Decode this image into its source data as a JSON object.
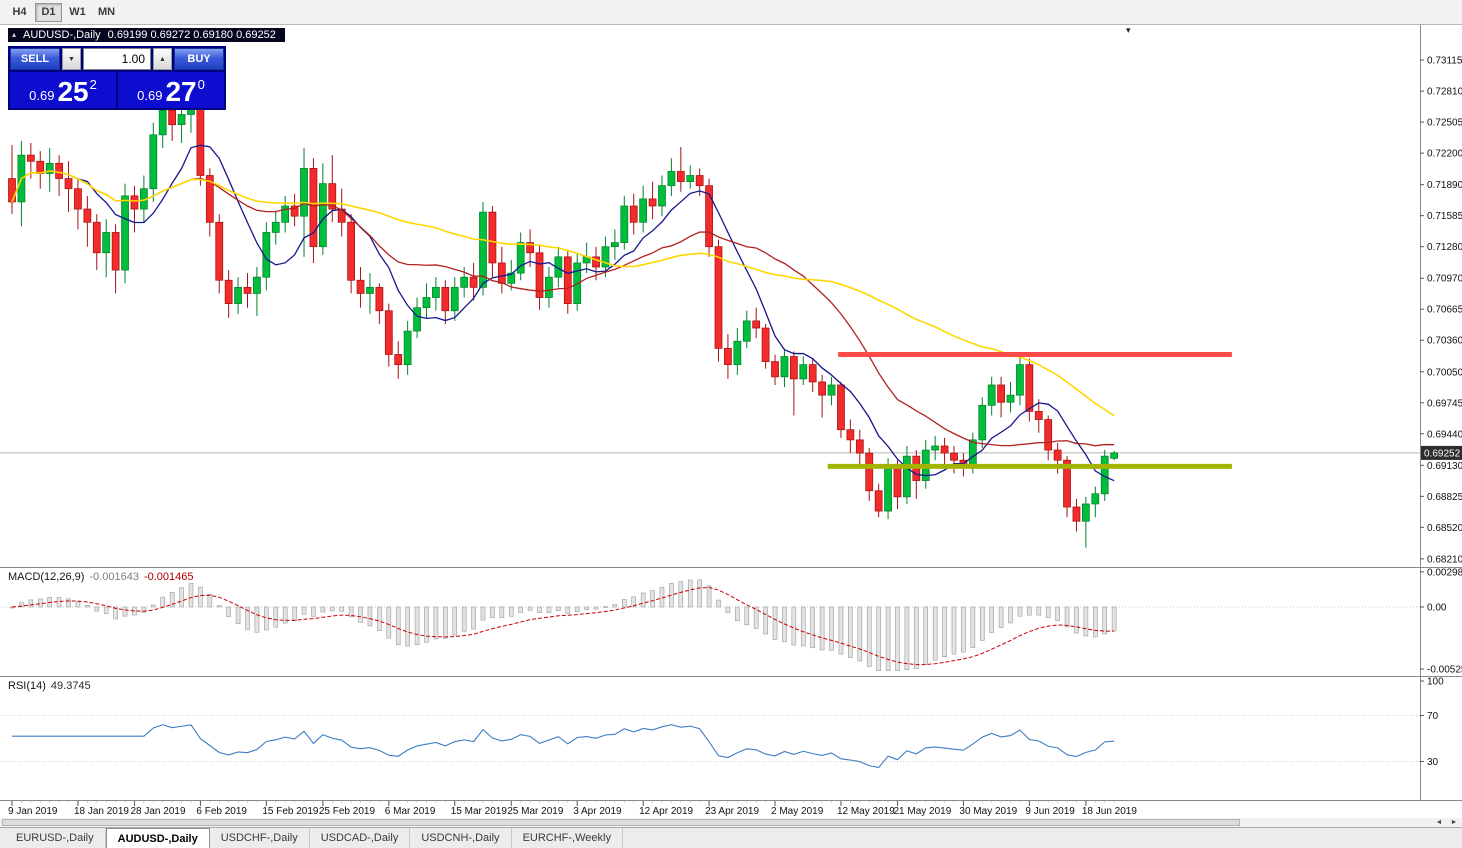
{
  "toolbar": {
    "timeframes": [
      "H4",
      "D1",
      "W1",
      "MN"
    ],
    "active": "D1"
  },
  "chart": {
    "symbol_title": "AUDUSD-,Daily",
    "ohlc_text": "0.69199 0.69272 0.69180 0.69252"
  },
  "trade_panel": {
    "volume": "1.00",
    "sell": {
      "label": "SELL",
      "price_main": "0.69",
      "price_big": "25",
      "price_sup": "2"
    },
    "buy": {
      "label": "BUY",
      "price_main": "0.69",
      "price_big": "27",
      "price_sup": "0"
    }
  },
  "icons": {
    "collapse": "▴",
    "dropdown": "▾",
    "scroll_left": "◄",
    "scroll_right": "►",
    "spin_down": "▼",
    "spin_up": "▲"
  },
  "price_axis": {
    "labels": [
      "0.73115",
      "0.72810",
      "0.72505",
      "0.72200",
      "0.71890",
      "0.71585",
      "0.71280",
      "0.70970",
      "0.70665",
      "0.70360",
      "0.70050",
      "0.69745",
      "0.69440",
      "0.69130",
      "0.68825",
      "0.68520",
      "0.68210"
    ],
    "current": "0.69252"
  },
  "macd": {
    "label": "MACD(12,26,9)",
    "value1": "-0.001643",
    "value2": "-0.001465",
    "axis_labels": [
      "0.002984",
      "0.00",
      "-0.005256"
    ]
  },
  "rsi": {
    "label": "RSI(14)",
    "value": "49.3745",
    "period": 14,
    "levels": [
      70,
      30
    ],
    "axis_labels": [
      "100",
      "70",
      "30"
    ]
  },
  "tabs": {
    "items": [
      "EURUSD-,Daily",
      "AUDUSD-,Daily",
      "USDCHF-,Daily",
      "USDCAD-,Daily",
      "USDCNH-,Daily",
      "EURCHF-,Weekly"
    ],
    "active_index": 1
  },
  "colors": {
    "bull": "#00be3c",
    "bull_border": "#00832a",
    "bear": "#f42b2b",
    "bear_border": "#a61111",
    "macd_bar": "#e3e3e3",
    "macd_bar_border": "#9b9b9b",
    "macd_signal": "#cc0000",
    "rsi_line": "#3e7dc4",
    "resistance": "#ff4a4a",
    "support": "#a3b400",
    "panel_blue": "#000082",
    "price_box_blue": "#0d0dcf"
  },
  "chart_data": {
    "type": "candlestick",
    "symbol": "AUDUSD",
    "timeframe": "Daily",
    "price_range": [
      0.6813,
      0.7346
    ],
    "current_price": 0.69252,
    "moving_averages": [
      {
        "period": 8,
        "color": "#16168f",
        "width": 1.3
      },
      {
        "period": 20,
        "color": "#b22222",
        "width": 1.3
      },
      {
        "period": 45,
        "color": "#ffd700",
        "width": 1.6
      }
    ],
    "lines": {
      "resistance": {
        "price": 0.7022,
        "start_index": 87.7,
        "end_index": 129.5,
        "color": "#ff4a4a",
        "width": 5
      },
      "support": {
        "price": 0.6912,
        "start_index": 86.6,
        "end_index": 129.5,
        "color": "#a3b400",
        "width": 5
      }
    },
    "date_labels": [
      [
        0,
        "9 Jan 2019"
      ],
      [
        7,
        "18 Jan 2019"
      ],
      [
        13,
        "28 Jan 2019"
      ],
      [
        20,
        "6 Feb 2019"
      ],
      [
        27,
        "15 Feb 2019"
      ],
      [
        33,
        "25 Feb 2019"
      ],
      [
        40,
        "6 Mar 2019"
      ],
      [
        47,
        "15 Mar 2019"
      ],
      [
        53,
        "25 Mar 2019"
      ],
      [
        60,
        "3 Apr 2019"
      ],
      [
        67,
        "12 Apr 2019"
      ],
      [
        74,
        "23 Apr 2019"
      ],
      [
        81,
        "2 May 2019"
      ],
      [
        88,
        "12 May 2019"
      ],
      [
        94,
        "21 May 2019"
      ],
      [
        101,
        "30 May 2019"
      ],
      [
        108,
        "9 Jun 2019"
      ],
      [
        114,
        "18 Jun 2019"
      ]
    ],
    "candles": [
      [
        0.7195,
        0.7228,
        0.716,
        0.7172
      ],
      [
        0.7172,
        0.7232,
        0.7148,
        0.7218
      ],
      [
        0.7218,
        0.723,
        0.7195,
        0.7212
      ],
      [
        0.7212,
        0.7222,
        0.7185,
        0.72
      ],
      [
        0.72,
        0.7225,
        0.7182,
        0.721
      ],
      [
        0.721,
        0.7218,
        0.7178,
        0.7195
      ],
      [
        0.7195,
        0.7212,
        0.7162,
        0.7185
      ],
      [
        0.7185,
        0.7195,
        0.7145,
        0.7165
      ],
      [
        0.7165,
        0.7178,
        0.7128,
        0.7152
      ],
      [
        0.7152,
        0.716,
        0.7105,
        0.7122
      ],
      [
        0.7122,
        0.7155,
        0.7098,
        0.7142
      ],
      [
        0.7142,
        0.715,
        0.7082,
        0.7105
      ],
      [
        0.7105,
        0.719,
        0.7092,
        0.7178
      ],
      [
        0.7178,
        0.7188,
        0.7142,
        0.7165
      ],
      [
        0.7165,
        0.7198,
        0.7152,
        0.7185
      ],
      [
        0.7185,
        0.725,
        0.7172,
        0.7238
      ],
      [
        0.7238,
        0.7272,
        0.7225,
        0.7262
      ],
      [
        0.7262,
        0.727,
        0.7232,
        0.7248
      ],
      [
        0.7248,
        0.7268,
        0.723,
        0.7258
      ],
      [
        0.7258,
        0.7275,
        0.724,
        0.7268
      ],
      [
        0.7268,
        0.7272,
        0.7188,
        0.7198
      ],
      [
        0.7198,
        0.7205,
        0.7138,
        0.7152
      ],
      [
        0.7152,
        0.716,
        0.7082,
        0.7095
      ],
      [
        0.7095,
        0.7105,
        0.7058,
        0.7072
      ],
      [
        0.7072,
        0.7098,
        0.7062,
        0.7088
      ],
      [
        0.7088,
        0.7102,
        0.7068,
        0.7082
      ],
      [
        0.7082,
        0.7108,
        0.706,
        0.7098
      ],
      [
        0.7098,
        0.7152,
        0.7085,
        0.7142
      ],
      [
        0.7142,
        0.7162,
        0.713,
        0.7152
      ],
      [
        0.7152,
        0.7178,
        0.7142,
        0.7168
      ],
      [
        0.7168,
        0.718,
        0.7148,
        0.7158
      ],
      [
        0.7158,
        0.7225,
        0.7118,
        0.7205
      ],
      [
        0.7205,
        0.7215,
        0.7112,
        0.7128
      ],
      [
        0.7128,
        0.721,
        0.712,
        0.719
      ],
      [
        0.719,
        0.7218,
        0.7152,
        0.7165
      ],
      [
        0.7165,
        0.7185,
        0.7138,
        0.7152
      ],
      [
        0.7152,
        0.716,
        0.7082,
        0.7095
      ],
      [
        0.7095,
        0.7108,
        0.7068,
        0.7082
      ],
      [
        0.7082,
        0.7102,
        0.7062,
        0.7088
      ],
      [
        0.7088,
        0.7092,
        0.7052,
        0.7065
      ],
      [
        0.7065,
        0.7072,
        0.701,
        0.7022
      ],
      [
        0.7022,
        0.7035,
        0.6998,
        0.7012
      ],
      [
        0.7012,
        0.7055,
        0.7002,
        0.7045
      ],
      [
        0.7045,
        0.7078,
        0.7038,
        0.7068
      ],
      [
        0.7068,
        0.7092,
        0.7058,
        0.7078
      ],
      [
        0.7078,
        0.7098,
        0.7065,
        0.7088
      ],
      [
        0.7088,
        0.7095,
        0.7052,
        0.7065
      ],
      [
        0.7065,
        0.7098,
        0.7055,
        0.7088
      ],
      [
        0.7088,
        0.7108,
        0.7078,
        0.7098
      ],
      [
        0.7098,
        0.7112,
        0.7075,
        0.7088
      ],
      [
        0.7088,
        0.7172,
        0.708,
        0.7162
      ],
      [
        0.7162,
        0.7168,
        0.7098,
        0.7112
      ],
      [
        0.7112,
        0.7128,
        0.7082,
        0.7092
      ],
      [
        0.7092,
        0.7115,
        0.7085,
        0.7102
      ],
      [
        0.7102,
        0.7142,
        0.7095,
        0.7132
      ],
      [
        0.7132,
        0.7145,
        0.7108,
        0.7122
      ],
      [
        0.7122,
        0.713,
        0.7066,
        0.7078
      ],
      [
        0.7078,
        0.7108,
        0.7068,
        0.7098
      ],
      [
        0.7098,
        0.7128,
        0.7088,
        0.7118
      ],
      [
        0.7118,
        0.7125,
        0.7062,
        0.7072
      ],
      [
        0.7072,
        0.7122,
        0.7065,
        0.7112
      ],
      [
        0.7112,
        0.7132,
        0.7102,
        0.7118
      ],
      [
        0.7118,
        0.7128,
        0.7095,
        0.7108
      ],
      [
        0.7108,
        0.7138,
        0.7098,
        0.7128
      ],
      [
        0.7128,
        0.7145,
        0.7115,
        0.7132
      ],
      [
        0.7132,
        0.7178,
        0.7125,
        0.7168
      ],
      [
        0.7168,
        0.718,
        0.714,
        0.7152
      ],
      [
        0.7152,
        0.7188,
        0.7142,
        0.7175
      ],
      [
        0.7175,
        0.7192,
        0.7155,
        0.7168
      ],
      [
        0.7168,
        0.7198,
        0.7158,
        0.7188
      ],
      [
        0.7188,
        0.7215,
        0.7178,
        0.7202
      ],
      [
        0.7202,
        0.7226,
        0.7182,
        0.7192
      ],
      [
        0.7192,
        0.7208,
        0.7185,
        0.7198
      ],
      [
        0.7198,
        0.7205,
        0.7178,
        0.7188
      ],
      [
        0.7188,
        0.7195,
        0.7118,
        0.7128
      ],
      [
        0.7128,
        0.7135,
        0.7015,
        0.7028
      ],
      [
        0.7028,
        0.7042,
        0.6998,
        0.7012
      ],
      [
        0.7012,
        0.7048,
        0.7002,
        0.7035
      ],
      [
        0.7035,
        0.7065,
        0.7028,
        0.7055
      ],
      [
        0.7055,
        0.7068,
        0.7038,
        0.7048
      ],
      [
        0.7048,
        0.7052,
        0.7008,
        0.7015
      ],
      [
        0.7015,
        0.7022,
        0.6992,
        0.7
      ],
      [
        0.7,
        0.7028,
        0.699,
        0.702
      ],
      [
        0.702,
        0.7025,
        0.6962,
        0.6998
      ],
      [
        0.6998,
        0.702,
        0.6992,
        0.7012
      ],
      [
        0.7012,
        0.7018,
        0.6985,
        0.6995
      ],
      [
        0.6995,
        0.7002,
        0.696,
        0.6982
      ],
      [
        0.6982,
        0.7,
        0.6972,
        0.6992
      ],
      [
        0.6992,
        0.6995,
        0.694,
        0.6948
      ],
      [
        0.6948,
        0.6958,
        0.6925,
        0.6938
      ],
      [
        0.6938,
        0.6948,
        0.691,
        0.6925
      ],
      [
        0.6925,
        0.693,
        0.6878,
        0.6888
      ],
      [
        0.6888,
        0.6895,
        0.6862,
        0.6868
      ],
      [
        0.6868,
        0.692,
        0.686,
        0.6912
      ],
      [
        0.6912,
        0.6918,
        0.687,
        0.6882
      ],
      [
        0.6882,
        0.6932,
        0.6875,
        0.6922
      ],
      [
        0.6922,
        0.6928,
        0.688,
        0.6898
      ],
      [
        0.6898,
        0.6938,
        0.689,
        0.6928
      ],
      [
        0.6928,
        0.6942,
        0.6918,
        0.6932
      ],
      [
        0.6932,
        0.694,
        0.6912,
        0.6925
      ],
      [
        0.6925,
        0.6932,
        0.6905,
        0.6918
      ],
      [
        0.6918,
        0.6925,
        0.6902,
        0.6912
      ],
      [
        0.6912,
        0.6945,
        0.6905,
        0.6938
      ],
      [
        0.6938,
        0.698,
        0.693,
        0.6972
      ],
      [
        0.6972,
        0.7,
        0.6962,
        0.6992
      ],
      [
        0.6992,
        0.7,
        0.696,
        0.6975
      ],
      [
        0.6975,
        0.6995,
        0.6965,
        0.6982
      ],
      [
        0.6982,
        0.7024,
        0.6972,
        0.7012
      ],
      [
        0.7012,
        0.7018,
        0.6956,
        0.6966
      ],
      [
        0.6966,
        0.6978,
        0.6945,
        0.6958
      ],
      [
        0.6958,
        0.6962,
        0.6918,
        0.6928
      ],
      [
        0.6928,
        0.6935,
        0.6905,
        0.6918
      ],
      [
        0.6918,
        0.6922,
        0.6862,
        0.6872
      ],
      [
        0.6872,
        0.688,
        0.6848,
        0.6858
      ],
      [
        0.6858,
        0.6882,
        0.6832,
        0.6875
      ],
      [
        0.6875,
        0.6892,
        0.6862,
        0.6885
      ],
      [
        0.6885,
        0.6928,
        0.6878,
        0.6922
      ],
      [
        0.69199,
        0.69272,
        0.6918,
        0.69252
      ]
    ]
  }
}
